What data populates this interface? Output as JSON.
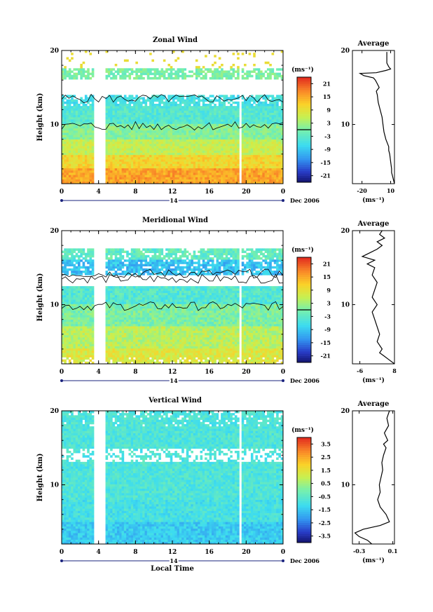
{
  "chart_data": [
    {
      "type": "heatmap",
      "title": "Zonal Wind",
      "ylabel": "Height (km)",
      "xlabel": "",
      "x_ticks": [
        "0",
        "4",
        "8",
        "12",
        "16",
        "20",
        "0"
      ],
      "xlim": [
        0,
        24
      ],
      "y_ticks": [
        "20",
        "10"
      ],
      "ylim": [
        2,
        20
      ],
      "date_label": "Dec 2006",
      "day_label": "14",
      "gaps_hours": [
        [
          3.6,
          4.7
        ],
        [
          18.4,
          18.6
        ],
        [
          19.2,
          19.4
        ]
      ],
      "colorbar": {
        "unit": "(ms⁻¹)",
        "ticks": [
          "21",
          "15",
          "9",
          "3",
          "-3",
          "-9",
          "-15",
          "-21"
        ],
        "range": [
          -24,
          24
        ],
        "zero_line": 0
      },
      "profile": {
        "title": "Average",
        "xlabel": "(ms⁻¹)",
        "x_ticks": [
          "-20",
          "10"
        ],
        "y_ticks": [
          "20",
          "10"
        ],
        "xlim": [
          -30,
          14
        ],
        "ylim": [
          2,
          20
        ],
        "points": [
          [
            14,
            2
          ],
          [
            13,
            2.5
          ],
          [
            12,
            3
          ],
          [
            11,
            3.5
          ],
          [
            11,
            4
          ],
          [
            10,
            5
          ],
          [
            9,
            6
          ],
          [
            8,
            6.5
          ],
          [
            8,
            7
          ],
          [
            5,
            8
          ],
          [
            3,
            9
          ],
          [
            2,
            10
          ],
          [
            1,
            11
          ],
          [
            -1,
            12
          ],
          [
            -3,
            13
          ],
          [
            -4,
            14
          ],
          [
            -5,
            14.5
          ],
          [
            -2,
            15
          ],
          [
            -4,
            15.5
          ],
          [
            -6,
            16
          ],
          [
            -8,
            16.3
          ],
          [
            -18,
            16.6
          ],
          [
            -22,
            16.9
          ],
          [
            -5,
            17
          ],
          [
            5,
            17.3
          ],
          [
            10,
            17.5
          ],
          [
            8,
            17.8
          ],
          [
            6,
            18.3
          ],
          [
            6,
            19
          ],
          [
            6,
            19.8
          ]
        ]
      }
    },
    {
      "type": "heatmap",
      "title": "Meridional Wind",
      "ylabel": "Height (km)",
      "xlabel": "",
      "x_ticks": [
        "0",
        "4",
        "8",
        "12",
        "16",
        "20",
        "0"
      ],
      "xlim": [
        0,
        24
      ],
      "y_ticks": [
        "20",
        "10"
      ],
      "ylim": [
        2,
        20
      ],
      "date_label": "Dec 2006",
      "day_label": "14",
      "gaps_hours": [
        [
          3.6,
          4.7
        ],
        [
          18.4,
          18.6
        ],
        [
          19.2,
          19.4
        ]
      ],
      "colorbar": {
        "unit": "(ms⁻¹)",
        "ticks": [
          "21",
          "15",
          "9",
          "3",
          "-3",
          "-9",
          "-15",
          "-21"
        ],
        "range": [
          -24,
          24
        ],
        "zero_line": 0
      },
      "profile": {
        "title": "Average",
        "xlabel": "(ms⁻¹)",
        "x_ticks": [
          "-6",
          "8"
        ],
        "y_ticks": [
          "20",
          "10"
        ],
        "xlim": [
          -9,
          8
        ],
        "ylim": [
          2,
          20
        ],
        "points": [
          [
            8,
            2
          ],
          [
            6,
            2.5
          ],
          [
            4,
            3
          ],
          [
            2,
            3.5
          ],
          [
            3,
            4
          ],
          [
            1,
            5
          ],
          [
            2,
            6
          ],
          [
            1,
            7
          ],
          [
            0,
            8
          ],
          [
            -1,
            9
          ],
          [
            1,
            10
          ],
          [
            -1,
            11
          ],
          [
            0,
            12
          ],
          [
            1,
            13
          ],
          [
            -1,
            14
          ],
          [
            0,
            15
          ],
          [
            -3,
            15.5
          ],
          [
            0,
            16
          ],
          [
            -5,
            16.5
          ],
          [
            -2,
            17
          ],
          [
            1,
            17.5
          ],
          [
            3,
            18
          ],
          [
            1,
            18.5
          ],
          [
            4,
            19
          ],
          [
            2,
            19.5
          ],
          [
            3,
            20
          ]
        ]
      }
    },
    {
      "type": "heatmap",
      "title": "Vertical Wind",
      "ylabel": "Height (km)",
      "xlabel": "Local Time",
      "x_ticks": [
        "0",
        "4",
        "8",
        "12",
        "16",
        "20",
        "0"
      ],
      "xlim": [
        0,
        24
      ],
      "y_ticks": [
        "20",
        "10"
      ],
      "ylim": [
        2,
        20
      ],
      "date_label": "Dec 2006",
      "day_label": "14",
      "gaps_hours": [
        [
          3.6,
          4.7
        ],
        [
          18.4,
          18.6
        ],
        [
          19.2,
          19.4
        ]
      ],
      "colorbar": {
        "unit": "(ms⁻¹)",
        "ticks": [
          "3.5",
          "2.5",
          "1.5",
          "0.5",
          "-0.5",
          "-1.5",
          "-2.5",
          "-3.5"
        ],
        "range": [
          -4,
          4
        ],
        "zero_line": null
      },
      "profile": {
        "title": "Average",
        "xlabel": "(ms⁻¹)",
        "x_ticks": [
          "-0.3",
          "0.1"
        ],
        "y_ticks": [
          "20",
          "10"
        ],
        "xlim": [
          -0.38,
          0.12
        ],
        "ylim": [
          2,
          20
        ],
        "points": [
          [
            -0.15,
            2
          ],
          [
            -0.2,
            2.5
          ],
          [
            -0.3,
            3
          ],
          [
            -0.35,
            3.5
          ],
          [
            -0.25,
            4
          ],
          [
            -0.05,
            4.5
          ],
          [
            0.06,
            5
          ],
          [
            0.02,
            6
          ],
          [
            -0.05,
            7
          ],
          [
            -0.08,
            8
          ],
          [
            -0.05,
            9
          ],
          [
            -0.06,
            10
          ],
          [
            -0.04,
            11
          ],
          [
            -0.02,
            12
          ],
          [
            -0.03,
            13
          ],
          [
            -0.01,
            14
          ],
          [
            0.02,
            15
          ],
          [
            -0.01,
            15.5
          ],
          [
            0.04,
            16
          ],
          [
            0,
            17
          ],
          [
            0.05,
            18
          ],
          [
            0.03,
            19
          ],
          [
            0.06,
            20
          ]
        ]
      }
    }
  ]
}
